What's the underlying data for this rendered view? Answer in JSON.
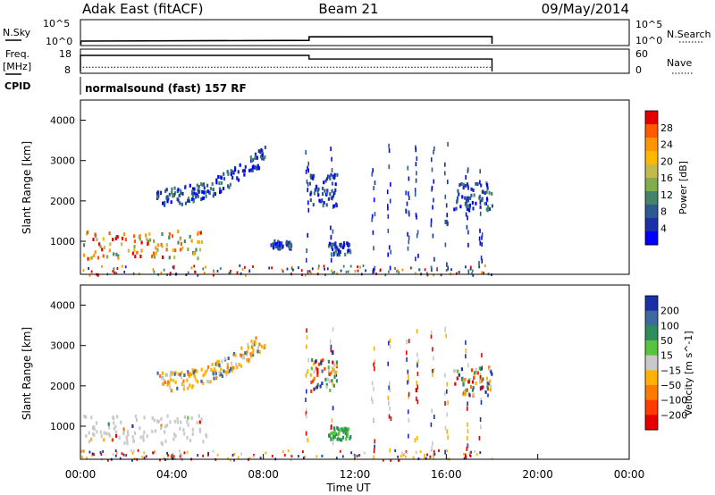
{
  "header": {
    "radar": "Adak East (fitACF)",
    "beam": "Beam 21",
    "date": "09/May/2014"
  },
  "panels": {
    "nsky": {
      "left_label": "N.Sky",
      "left_ticks": [
        "10^5",
        "10^0"
      ],
      "right_ticks": [
        "10^5",
        "10^0"
      ],
      "right_label": "N.Search",
      "series": [
        {
          "name": "N.Sky",
          "x_hours": [
            0,
            0.02,
            0.02,
            10,
            10,
            18,
            18
          ],
          "y_log10": [
            0,
            0,
            0.55,
            0.7,
            1.45,
            1.5,
            0
          ]
        }
      ]
    },
    "freq": {
      "left_label_top": "Freq.",
      "left_label_bottom": "[MHz]",
      "left_ticks": [
        "18",
        "8"
      ],
      "right_ticks": [
        "60",
        "0"
      ],
      "right_label": "Nave",
      "left_ylim": [
        8,
        18
      ],
      "right_ylim": [
        0,
        60
      ],
      "freq_series": {
        "x_hours": [
          0,
          0,
          10,
          10,
          18,
          18
        ],
        "y_mhz": [
          8,
          15.5,
          15.5,
          13.8,
          13.8,
          8
        ]
      },
      "nave_series": {
        "x_hours": [
          0.1,
          10,
          10,
          18,
          18
        ],
        "y": [
          12,
          12,
          12,
          12,
          0
        ]
      }
    },
    "cpid": {
      "label": "CPID",
      "text": "normalsound (fast) 157 RF"
    }
  },
  "chart_data": [
    {
      "type": "heatmap",
      "title": "",
      "ylabel": "Slant Range [km]",
      "xlabel": "",
      "xlim_hours": [
        0,
        24
      ],
      "ylim": [
        180,
        4500
      ],
      "yticks": [
        1000,
        2000,
        3000,
        4000
      ],
      "colorbar": {
        "label": "Power [dB]",
        "ticks": [
          "28",
          "24",
          "20",
          "16",
          "12",
          "8",
          "4"
        ],
        "range": [
          0,
          30
        ],
        "colors": [
          "#e50000",
          "#ff5a00",
          "#ff9500",
          "#ffb800",
          "#c6b94b",
          "#7fad4f",
          "#43836a",
          "#2c5a8f",
          "#1b2fa8",
          "#0000ff"
        ]
      },
      "regions": [
        {
          "x": [
            0.1,
            5.5
          ],
          "y": [
            600,
            1300
          ],
          "value": "mixed 8-24 dB"
        },
        {
          "x": [
            3.3,
            8.1
          ],
          "y": [
            1950,
            3400
          ],
          "value": "4-20 dB"
        },
        {
          "x": [
            8.3,
            9.2
          ],
          "y": [
            850,
            1050
          ],
          "value": "4-8 dB"
        },
        {
          "x": [
            10.0,
            11.2
          ],
          "y": [
            1900,
            2700
          ],
          "value": "4-12 dB"
        },
        {
          "x": [
            10.8,
            11.8
          ],
          "y": [
            700,
            1000
          ],
          "value": "4-12 dB"
        },
        {
          "x": [
            16.3,
            18.0
          ],
          "y": [
            1800,
            2500
          ],
          "value": "4-8 dB"
        }
      ]
    },
    {
      "type": "heatmap",
      "title": "",
      "ylabel": "Slant Range [km]",
      "xlabel": "Time UT",
      "xlim_hours": [
        0,
        24
      ],
      "ylim": [
        180,
        4500
      ],
      "xticks": [
        "00:00",
        "04:00",
        "08:00",
        "12:00",
        "16:00",
        "20:00",
        "00:00"
      ],
      "yticks": [
        1000,
        2000,
        3000,
        4000
      ],
      "colorbar": {
        "label": "Velocity [m s^-1]",
        "ticks": [
          "200",
          "100",
          "50",
          "15",
          "-15",
          "-50",
          "-100",
          "-200"
        ],
        "colors": [
          "#1a2fa8",
          "#3c6a9e",
          "#2c8f5a",
          "#56c43c",
          "#c9c9c9",
          "#ffb100",
          "#ff7a00",
          "#ff3b00",
          "#e50000"
        ]
      },
      "regions": [
        {
          "x": [
            0.1,
            5.5
          ],
          "y": [
            600,
            1300
          ],
          "value": "ground scatter (grey)"
        },
        {
          "x": [
            3.3,
            8.1
          ],
          "y": [
            1950,
            3400
          ],
          "value": "-15 to -100"
        },
        {
          "x": [
            10.0,
            11.2
          ],
          "y": [
            1900,
            2700
          ],
          "value": "mixed"
        },
        {
          "x": [
            10.8,
            11.8
          ],
          "y": [
            700,
            1000
          ],
          "value": "15 to 100"
        },
        {
          "x": [
            16.3,
            18.0
          ],
          "y": [
            1800,
            2500
          ],
          "value": "mixed"
        }
      ]
    }
  ]
}
